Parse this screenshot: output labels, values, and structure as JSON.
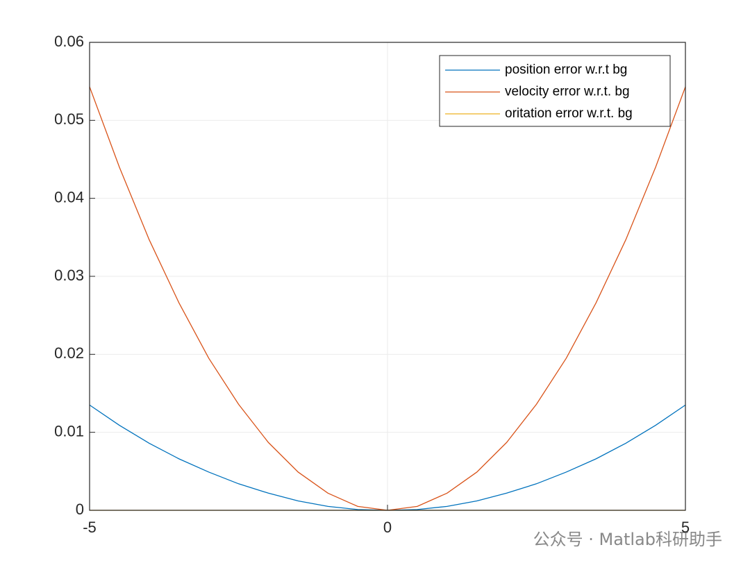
{
  "chart_data": {
    "type": "line",
    "x": [
      -5,
      -4.5,
      -4,
      -3.5,
      -3,
      -2.5,
      -2,
      -1.5,
      -1,
      -0.5,
      0,
      0.5,
      1,
      1.5,
      2,
      2.5,
      3,
      3.5,
      4,
      4.5,
      5
    ],
    "series": [
      {
        "name": "position error w.r.t bg",
        "color": "#0072bd",
        "values": [
          0.0135,
          0.0109,
          0.0086,
          0.0066,
          0.0049,
          0.0034,
          0.0022,
          0.0012,
          0.0005,
          0.0001,
          0,
          0.0001,
          0.0005,
          0.0012,
          0.0022,
          0.0034,
          0.0049,
          0.0066,
          0.0086,
          0.0109,
          0.0135
        ]
      },
      {
        "name": "velocity error w.r.t. bg",
        "color": "#d95319",
        "values": [
          0.0543,
          0.044,
          0.0347,
          0.0266,
          0.0195,
          0.0136,
          0.0087,
          0.0049,
          0.0022,
          0.0005,
          0,
          0.0005,
          0.0022,
          0.0049,
          0.0087,
          0.0136,
          0.0195,
          0.0266,
          0.0347,
          0.044,
          0.0543
        ]
      },
      {
        "name": "oritation error w.r.t. bg",
        "color": "#edb120",
        "values": [
          0,
          0,
          0,
          0,
          0,
          0,
          0,
          0,
          0,
          0,
          0,
          0,
          0,
          0,
          0,
          0,
          0,
          0,
          0,
          0,
          0
        ]
      }
    ],
    "xlim": [
      -5,
      5
    ],
    "xticks": [
      -5,
      0,
      5
    ],
    "ylim": [
      0,
      0.06
    ],
    "yticks": [
      0,
      0.01,
      0.02,
      0.03,
      0.04,
      0.05,
      0.06
    ],
    "grid": true,
    "legend": "top-right",
    "watermark": "公众号 · Matlab科研助手"
  }
}
